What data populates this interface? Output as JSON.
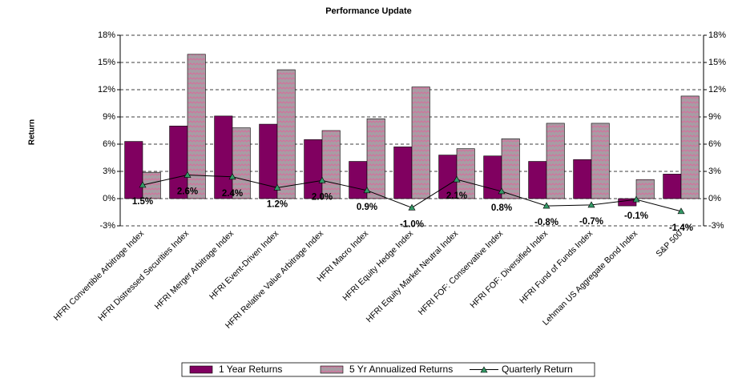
{
  "chart_data": {
    "type": "bar",
    "title": "Performance Update",
    "y_label": "Return",
    "categories": [
      "HFRI Convertible Arbitrage Index",
      "HFRI Distressed Securities Index",
      "HFRI Merger Arbitrage Index",
      "HFRI Event-Driven Index",
      "HFRI Relative Value Arbitrage Index",
      "HFRI Macro Index",
      "HFRI Equity Hedge Index",
      "HFRI Equity Market Neutral Index",
      "HFRI FOF: Conservative Index",
      "HFRI FOF: Diversified Index",
      "HFRI Fund of Funds Index",
      "Lehman US Aggregate Bond Index",
      "S&P 500"
    ],
    "series": [
      {
        "name": "1 Year Returns",
        "color": "#800060",
        "values": [
          6.3,
          8.0,
          9.1,
          8.2,
          6.5,
          4.1,
          5.7,
          4.8,
          4.7,
          4.1,
          4.3,
          -0.8,
          2.7
        ]
      },
      {
        "name": "5 Yr Annualized Returns",
        "color": "#a89ca4",
        "values": [
          2.9,
          15.9,
          7.8,
          14.2,
          7.5,
          8.8,
          12.3,
          5.5,
          6.6,
          8.3,
          8.3,
          2.1,
          11.3
        ]
      },
      {
        "name": "Quarterly Return",
        "type": "line",
        "color": "#000000",
        "marker_color": "#339966",
        "values": [
          1.5,
          2.6,
          2.4,
          1.2,
          2.0,
          0.9,
          -1.0,
          2.1,
          0.8,
          -0.8,
          -0.7,
          -0.1,
          -1.4
        ],
        "value_labels": [
          "1.5%",
          "2.6%",
          "2.4%",
          "1.2%",
          "2.0%",
          "0.9%",
          "-1.0%",
          "2.1%",
          "0.8%",
          "-0.8%",
          "-0.7%",
          "-0.1%",
          "-1.4%"
        ]
      }
    ],
    "ylim": [
      -3,
      18
    ],
    "yticks": [
      {
        "value": -3,
        "label": "-3%"
      },
      {
        "value": 0,
        "label": "0%"
      },
      {
        "value": 3,
        "label": "3%"
      },
      {
        "value": 6,
        "label": "6%"
      },
      {
        "value": 9,
        "label": "9%"
      },
      {
        "value": 12,
        "label": "12%"
      },
      {
        "value": 15,
        "label": "15%"
      },
      {
        "value": 18,
        "label": "18%"
      }
    ],
    "y2lim": [
      -3,
      18
    ],
    "y2ticks": [
      {
        "value": -3,
        "label": "-3%"
      },
      {
        "value": 0,
        "label": "0%"
      },
      {
        "value": 3,
        "label": "3%"
      },
      {
        "value": 6,
        "label": "6%"
      },
      {
        "value": 9,
        "label": "9%"
      },
      {
        "value": 12,
        "label": "12%"
      },
      {
        "value": 15,
        "label": "15%"
      },
      {
        "value": 18,
        "label": "18%"
      }
    ],
    "grid": true,
    "legend": "bottom"
  }
}
